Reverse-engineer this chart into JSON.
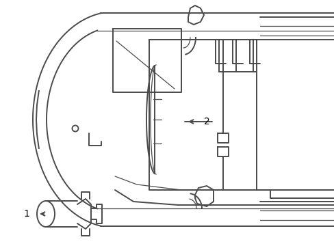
{
  "bg_color": "#ffffff",
  "line_color": "#4a4a4a",
  "label_color": "#000000",
  "lw_outer": 1.4,
  "lw_inner": 0.9,
  "lw_thin": 0.7,
  "label1": "1",
  "label2": "2",
  "figsize": [
    4.89,
    3.6
  ],
  "dpi": 100
}
